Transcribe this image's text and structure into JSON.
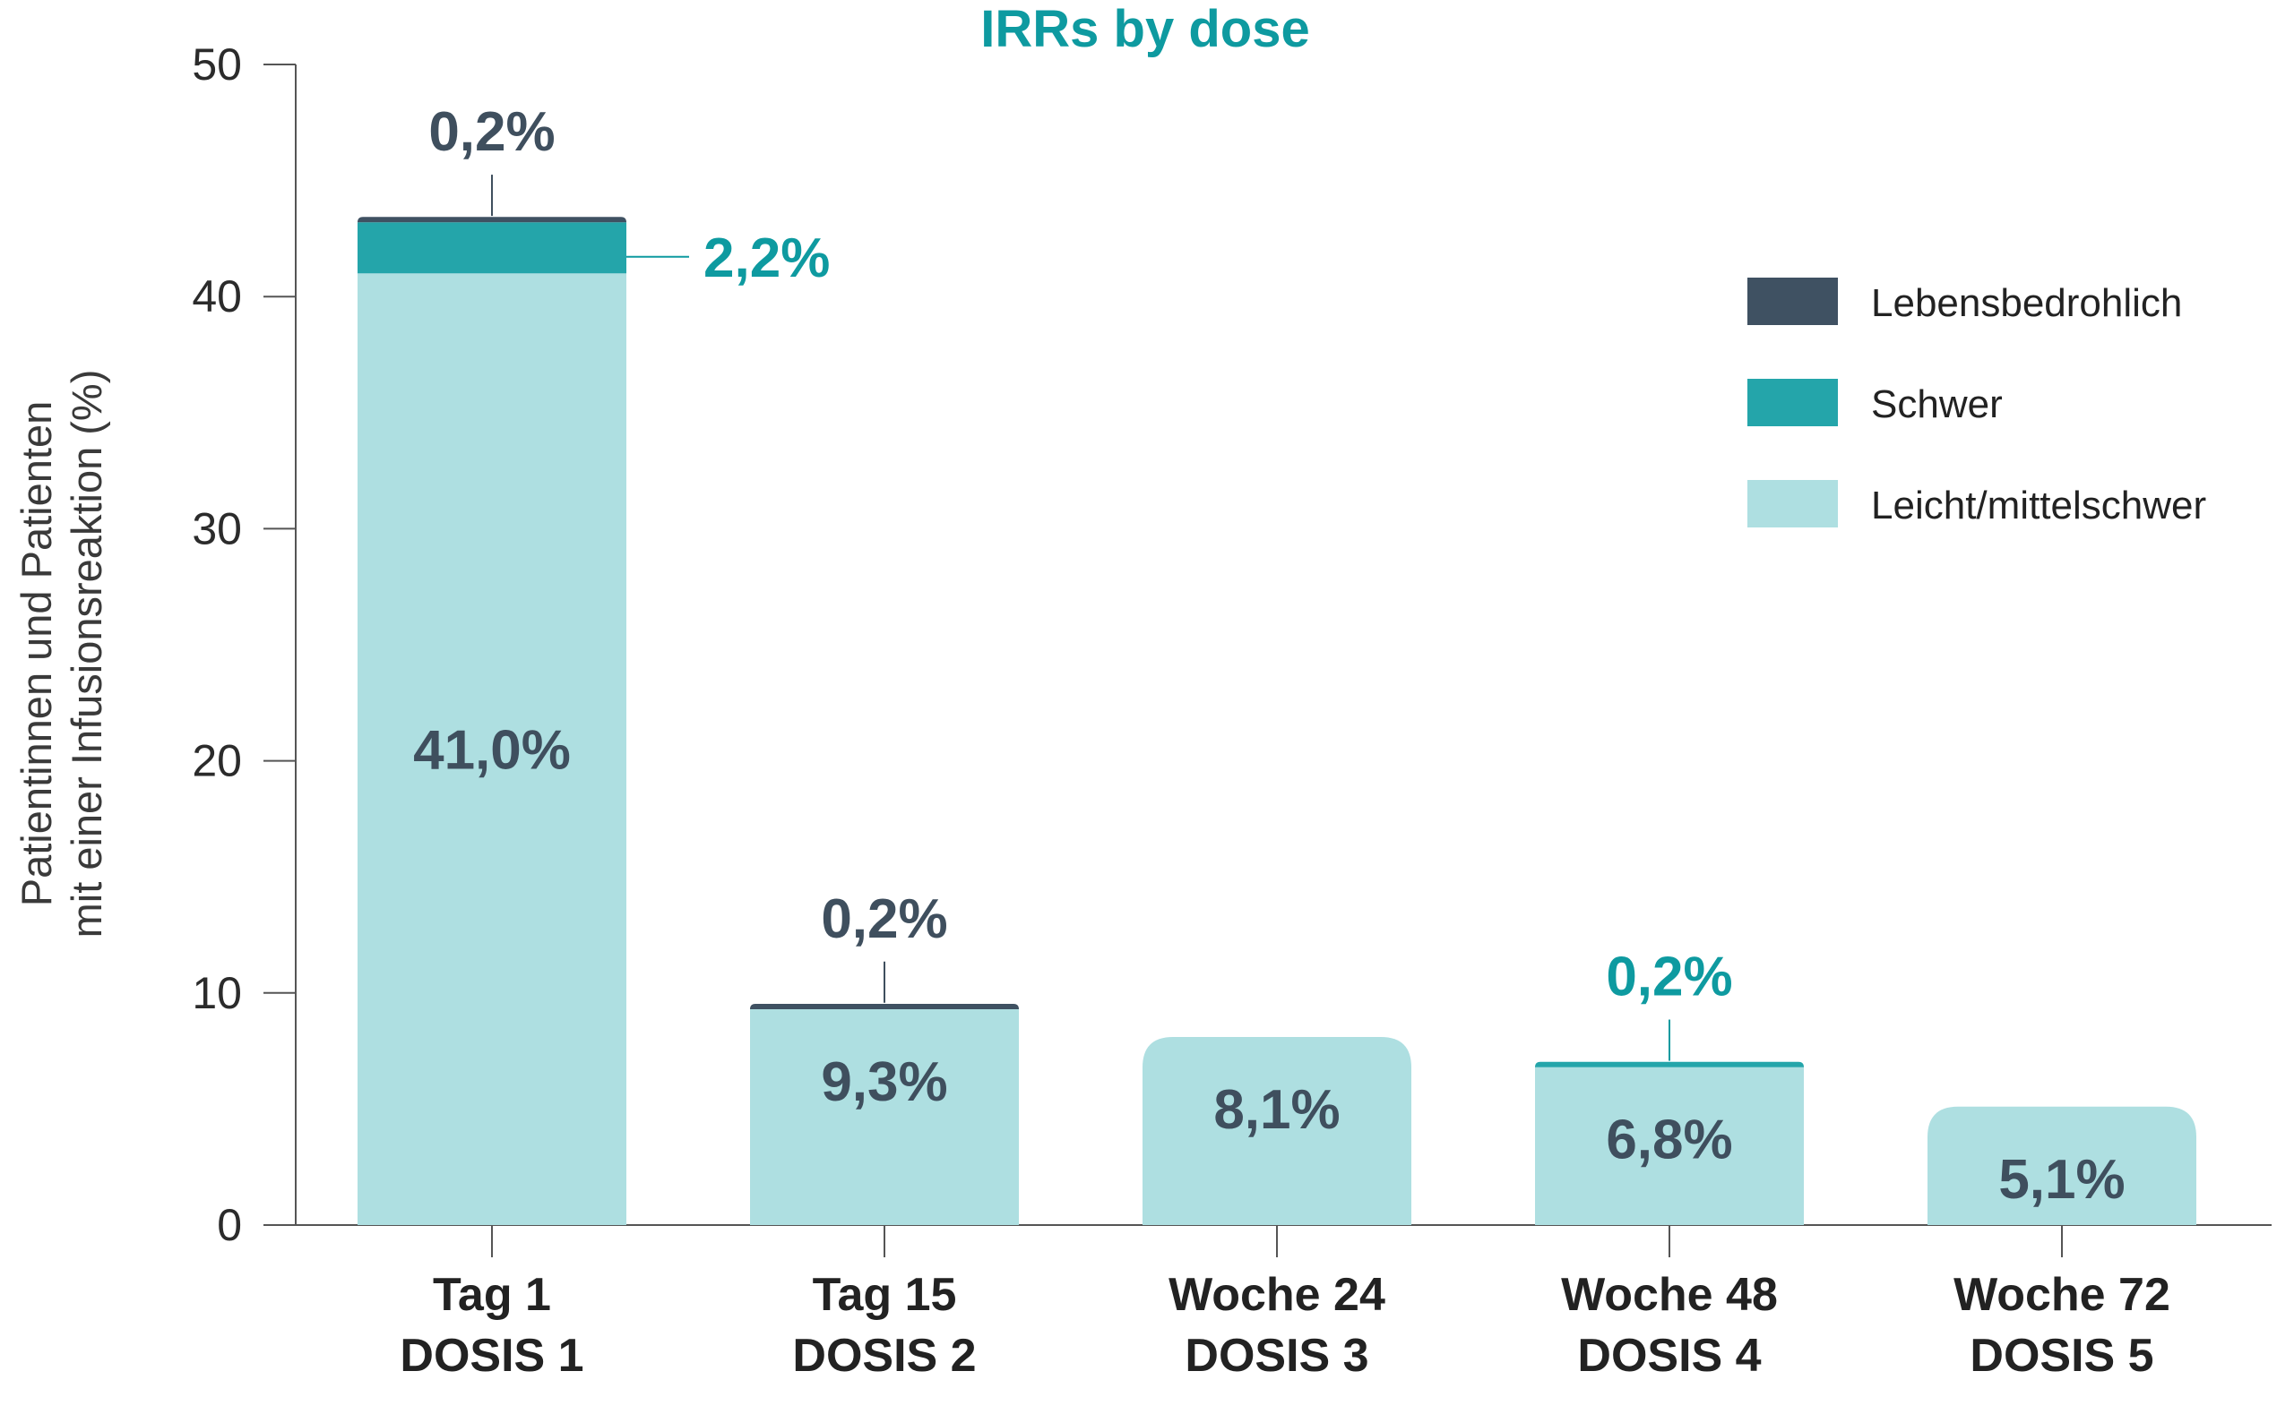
{
  "colors": {
    "life_threatening": "#3f5162",
    "severe": "#24a5aa",
    "mild_moderate": "#aedfe1",
    "title": "#0e9aa0",
    "dark_label": "#3f4f5e",
    "teal_label": "#0e9aa0",
    "axis": "#555555"
  },
  "chart_data": {
    "type": "bar",
    "stacked": true,
    "title": "IRRs by dose",
    "ylabel": [
      "Patientinnen und Patienten",
      "mit einer Infusionsreaktion (%)"
    ],
    "xlabel": "",
    "ylim": [
      0,
      50
    ],
    "yticks": [
      "0",
      "10",
      "20",
      "30",
      "40",
      "50"
    ],
    "categories": [
      [
        "Tag 1",
        "DOSIS 1"
      ],
      [
        "Tag 15",
        "DOSIS 2"
      ],
      [
        "Woche 24",
        "DOSIS 3"
      ],
      [
        "Woche 48",
        "DOSIS 4"
      ],
      [
        "Woche 72",
        "DOSIS 5"
      ]
    ],
    "series": [
      {
        "name": "Leicht/mittelschwer",
        "color_key": "mild_moderate",
        "values": [
          41.0,
          9.3,
          8.1,
          6.8,
          5.1
        ]
      },
      {
        "name": "Schwer",
        "color_key": "severe",
        "values": [
          2.2,
          0,
          0,
          0.2,
          0
        ]
      },
      {
        "name": "Lebensbedrohlich",
        "color_key": "life_threatening",
        "values": [
          0.2,
          0.2,
          0,
          0,
          0
        ]
      }
    ],
    "legend": {
      "position": "top-right",
      "entries": [
        {
          "label": "Lebensbedrohlich",
          "color_key": "life_threatening"
        },
        {
          "label": "Schwer",
          "color_key": "severe"
        },
        {
          "label": "Leicht/mittelschwer",
          "color_key": "mild_moderate"
        }
      ]
    },
    "data_labels": [
      {
        "category": 0,
        "series": "Leicht/mittelschwer",
        "text": "41,0%",
        "style": "inside"
      },
      {
        "category": 0,
        "series": "Schwer",
        "text": "2,2%",
        "style": "callout-right"
      },
      {
        "category": 0,
        "series": "Lebensbedrohlich",
        "text": "0,2%",
        "style": "callout-top"
      },
      {
        "category": 1,
        "series": "Leicht/mittelschwer",
        "text": "9,3%",
        "style": "inside"
      },
      {
        "category": 1,
        "series": "Lebensbedrohlich",
        "text": "0,2%",
        "style": "callout-top"
      },
      {
        "category": 2,
        "series": "Leicht/mittelschwer",
        "text": "8,1%",
        "style": "inside"
      },
      {
        "category": 3,
        "series": "Leicht/mittelschwer",
        "text": "6,8%",
        "style": "inside"
      },
      {
        "category": 3,
        "series": "Schwer",
        "text": "0,2%",
        "style": "callout-top"
      },
      {
        "category": 4,
        "series": "Leicht/mittelschwer",
        "text": "5,1%",
        "style": "inside"
      }
    ]
  }
}
